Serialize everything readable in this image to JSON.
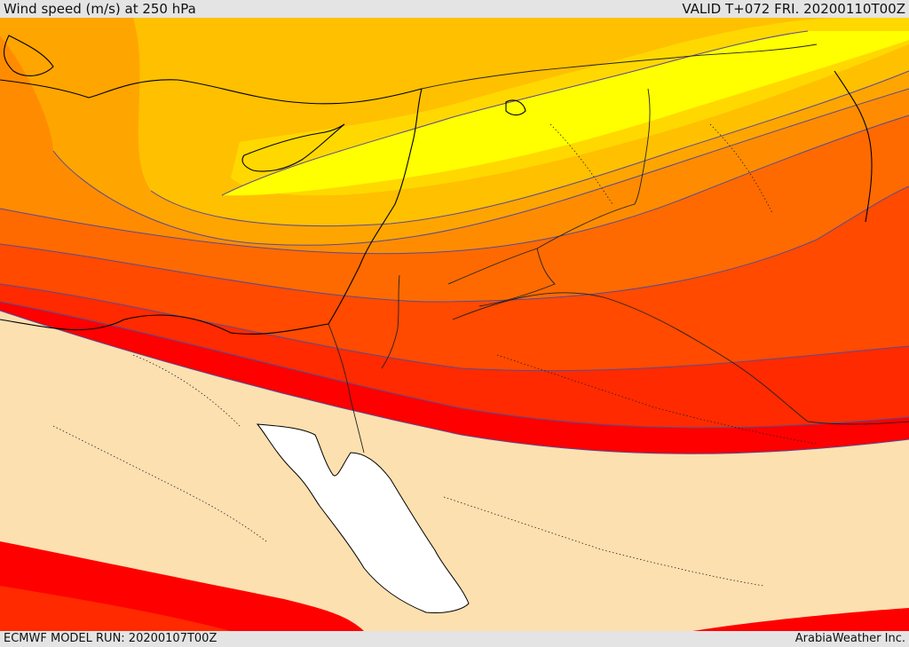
{
  "header": {
    "title": "Wind speed (m/s) at 250 hPa",
    "valid_time": "VALID T+072 FRI. 20200110T00Z"
  },
  "footer": {
    "model_run": "ECMWF MODEL RUN: 20200107T00Z",
    "credit": "ArabiaWeather Inc."
  },
  "map": {
    "variable": "wind speed",
    "units": "m/s",
    "pressure_level": "250 hPa",
    "fill_colors": {
      "weak": "#fde0b0",
      "band_red": "#ff0000",
      "band_red_orange": "#ff2a00",
      "band_orange_red": "#ff4a00",
      "band_orange": "#ff6a00",
      "band_deep_amber": "#ff8c00",
      "band_amber": "#ffa500",
      "band_gold": "#ffc000",
      "band_light_gold": "#ffd800",
      "core_yellow": "#ffff00",
      "sea": "#ffffff"
    },
    "line_colors": {
      "contour": "#5a4a90",
      "coastline": "#000000",
      "border": "#222222"
    }
  }
}
